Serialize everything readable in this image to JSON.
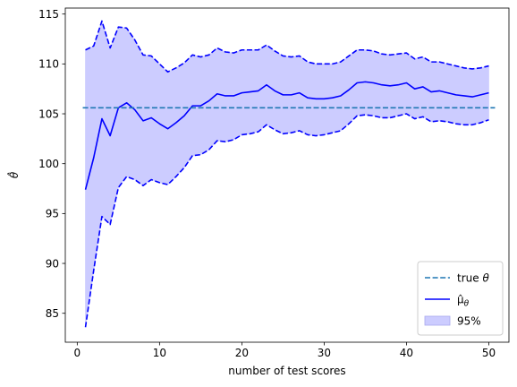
{
  "chart_data": {
    "type": "line",
    "title": "",
    "xlabel": "number of test scores",
    "ylabel": "θ̂",
    "xlim": [
      -1.45,
      52.45
    ],
    "ylim": [
      82.1,
      115.6
    ],
    "xticks": [
      0,
      10,
      20,
      30,
      40,
      50
    ],
    "yticks": [
      85,
      90,
      95,
      100,
      105,
      110,
      115
    ],
    "grid": false,
    "legend_position": "lower-right",
    "legend": [
      {
        "label_main": "true ",
        "label_sub": "",
        "label_italic": "θ",
        "style": "dashed-line",
        "color": "#1f77b4"
      },
      {
        "label_main": "μ̂",
        "label_sub": "θ",
        "label_italic": "",
        "style": "solid-line",
        "color": "#0000ff"
      },
      {
        "label_main": "95%",
        "label_sub": "",
        "label_italic": "",
        "style": "filled-patch",
        "color": "#ccccff"
      }
    ],
    "x": [
      1,
      2,
      3,
      4,
      5,
      6,
      7,
      8,
      9,
      10,
      11,
      12,
      13,
      14,
      15,
      16,
      17,
      18,
      19,
      20,
      21,
      22,
      23,
      24,
      25,
      26,
      27,
      28,
      29,
      30,
      31,
      32,
      33,
      34,
      35,
      36,
      37,
      38,
      39,
      40,
      41,
      42,
      43,
      44,
      45,
      46,
      47,
      48,
      49,
      50
    ],
    "series": [
      {
        "name": "θ",
        "kind": "hline",
        "value": 105.6,
        "color": "#1f77b4",
        "dash": true
      },
      {
        "name": "μ̂θ",
        "kind": "mean",
        "color": "#0000ff",
        "values": [
          97.4,
          100.6,
          104.5,
          102.8,
          105.6,
          106.1,
          105.4,
          104.3,
          104.6,
          104.0,
          103.5,
          104.1,
          104.8,
          105.8,
          105.8,
          106.3,
          107.0,
          106.8,
          106.8,
          107.1,
          107.2,
          107.3,
          107.9,
          107.3,
          106.9,
          106.9,
          107.1,
          106.6,
          106.5,
          106.5,
          106.6,
          106.8,
          107.4,
          108.1,
          108.2,
          108.1,
          107.9,
          107.8,
          107.9,
          108.1,
          107.5,
          107.7,
          107.2,
          107.3,
          107.1,
          106.9,
          106.8,
          106.7,
          106.9,
          107.1
        ]
      },
      {
        "name": "95% upper",
        "kind": "upper",
        "color": "#0000ff",
        "dash": true,
        "values": [
          111.4,
          111.8,
          114.3,
          111.6,
          113.7,
          113.6,
          112.4,
          110.9,
          110.8,
          110.0,
          109.2,
          109.6,
          110.1,
          110.9,
          110.7,
          110.9,
          111.6,
          111.2,
          111.1,
          111.4,
          111.4,
          111.4,
          111.9,
          111.3,
          110.8,
          110.7,
          110.8,
          110.2,
          110.0,
          110.0,
          110.0,
          110.2,
          110.8,
          111.4,
          111.4,
          111.3,
          111.0,
          110.9,
          111.0,
          111.1,
          110.5,
          110.7,
          110.2,
          110.2,
          110.0,
          109.8,
          109.6,
          109.5,
          109.6,
          109.8
        ]
      },
      {
        "name": "95% lower",
        "kind": "lower",
        "color": "#0000ff",
        "dash": true,
        "values": [
          83.6,
          89.3,
          94.7,
          93.9,
          97.6,
          98.7,
          98.4,
          97.8,
          98.4,
          98.1,
          97.9,
          98.7,
          99.6,
          100.8,
          100.9,
          101.4,
          102.3,
          102.2,
          102.4,
          102.9,
          103.0,
          103.2,
          103.9,
          103.4,
          103.0,
          103.1,
          103.3,
          102.9,
          102.8,
          102.9,
          103.1,
          103.3,
          104.0,
          104.8,
          104.9,
          104.8,
          104.6,
          104.6,
          104.8,
          105.0,
          104.5,
          104.7,
          104.2,
          104.3,
          104.2,
          104.0,
          103.9,
          103.9,
          104.1,
          104.4
        ]
      }
    ],
    "band_color": "#ccccff"
  }
}
